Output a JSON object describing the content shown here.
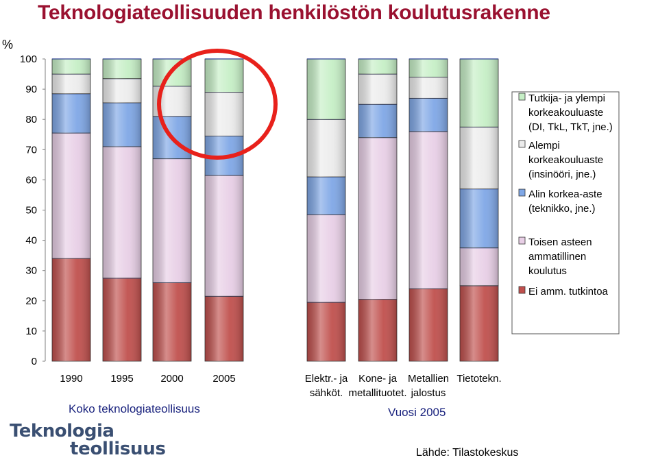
{
  "title": "Teknologiateollisuuden henkilöstön koulutusrakenne",
  "y_unit": "%",
  "group_labels": {
    "left": "Koko teknologiateollisuus",
    "right": "Vuosi 2005"
  },
  "category_lines": [
    [
      "1990"
    ],
    [
      "1995"
    ],
    [
      "2000"
    ],
    [
      "2005"
    ],
    [
      "Elektr.- ja",
      "sähköt."
    ],
    [
      "Kone- ja",
      "metallituotet."
    ],
    [
      "Metallien",
      "jalostus"
    ],
    [
      "Tietotekn."
    ]
  ],
  "logo": {
    "line1": "Teknologia",
    "line2": "teollisuus"
  },
  "source": "Lähde: Tilastokeskus",
  "colors": {
    "highlight_circle": "#e8211b",
    "title": "#9a1130",
    "group_label": "#1a237e"
  },
  "chart_data": {
    "type": "bar",
    "stacked": true,
    "ylim": [
      0,
      100
    ],
    "yticks": [
      0,
      10,
      20,
      30,
      40,
      50,
      60,
      70,
      80,
      90,
      100
    ],
    "categories": [
      "1990",
      "1995",
      "2000",
      "2005",
      "Elektr.- ja sähköt.",
      "Kone- ja metallituotet.",
      "Metallien jalostus",
      "Tietotekn."
    ],
    "series": [
      {
        "name": "Ei amm. tutkintoa",
        "color": "#c0504d",
        "values": [
          34,
          27.5,
          26,
          21.5,
          19.5,
          20.5,
          24,
          25
        ]
      },
      {
        "name": "Toisen asteen ammatillinen koulutus",
        "color": "#e8cfe6",
        "values": [
          41.5,
          43.5,
          41,
          40,
          29,
          53.5,
          52,
          12.5
        ]
      },
      {
        "name": "Alin korkea-aste (teknikko, jne.)",
        "color": "#7fa7e6",
        "values": [
          13,
          14.5,
          14,
          13,
          12.5,
          11,
          11,
          19.5
        ]
      },
      {
        "name": "Alempi korkeakouluaste (insinööri, jne.)",
        "color": "#ececec",
        "values": [
          6.5,
          8,
          10,
          14.5,
          19,
          10,
          7,
          20.5
        ]
      },
      {
        "name": "Tutkija- ja ylempi korkeakouluaste (DI, TkL, TkT, jne.)",
        "color": "#c6efc6",
        "values": [
          5,
          6.5,
          9,
          11,
          20,
          5,
          6,
          22.5
        ]
      }
    ],
    "highlight": "2005",
    "legend_position": "right",
    "legend": [
      {
        "series": 4,
        "lines": [
          "Tutkija- ja ylempi",
          "korkeakouluaste",
          "(DI, TkL, TkT, jne.)"
        ]
      },
      {
        "series": 3,
        "lines": [
          "Alempi",
          "korkeakouluaste",
          "(insinööri, jne.)"
        ]
      },
      {
        "series": 2,
        "lines": [
          "Alin korkea-aste",
          "(teknikko, jne.)"
        ]
      },
      {
        "series": 1,
        "lines": [
          "Toisen asteen",
          "ammatillinen",
          "koulutus"
        ]
      },
      {
        "series": 0,
        "lines": [
          "Ei amm. tutkintoa"
        ]
      }
    ]
  }
}
